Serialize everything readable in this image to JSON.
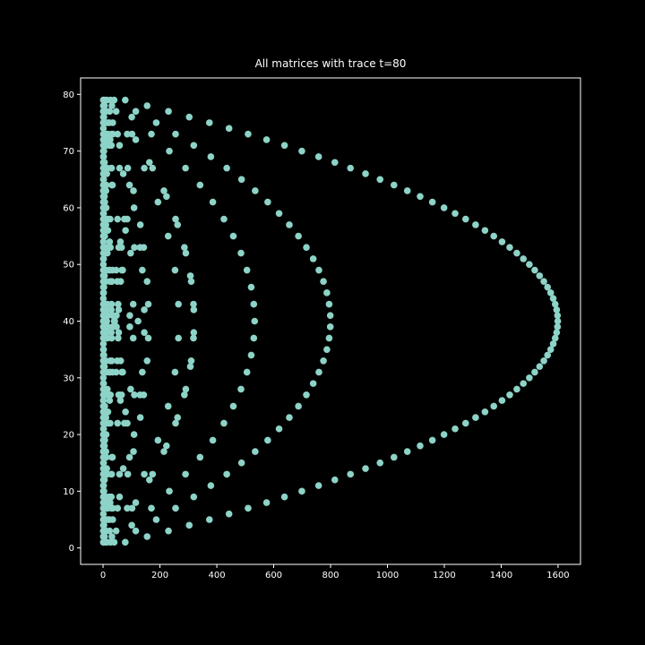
{
  "chart_data": {
    "type": "scatter",
    "title": "All matrices with trace t=80",
    "color": "#8dd3c7",
    "xlim": [
      -78.9,
      1678.9
    ],
    "ylim": [
      -2.9,
      82.9
    ],
    "xticks": [
      0,
      200,
      400,
      600,
      800,
      1000,
      1200,
      1400,
      1600
    ],
    "yticks": [
      0,
      10,
      20,
      30,
      40,
      50,
      60,
      70,
      80
    ],
    "x": [
      1,
      2,
      3,
      6,
      13,
      26,
      39,
      78,
      1,
      5,
      31,
      155,
      1,
      2,
      5,
      10,
      23,
      46,
      115,
      230,
      1,
      3,
      101,
      303,
      1,
      2,
      11,
      17,
      22,
      34,
      187,
      374,
      1,
      443,
      1,
      2,
      3,
      5,
      6,
      10,
      15,
      17,
      30,
      34,
      51,
      85,
      102,
      170,
      255,
      510,
      1,
      5,
      23,
      25,
      115,
      575,
      1,
      2,
      11,
      22,
      29,
      58,
      319,
      638,
      1,
      3,
      233,
      699,
      1,
      2,
      379,
      758,
      1,
      5,
      163,
      815,
      1,
      2,
      3,
      5,
      6,
      10,
      15,
      29,
      30,
      58,
      87,
      145,
      174,
      290,
      435,
      870,
      1,
      13,
      71,
      923,
      1,
      2,
      487,
      974,
      1,
      3,
      11,
      31,
      33,
      93,
      341,
      1023,
      1,
      2,
      5,
      10,
      107,
      214,
      535,
      1070,
      1,
      5,
      223,
      1115,
      1,
      2,
      3,
      6,
      193,
      386,
      579,
      1158,
      1,
      11,
      109,
      1199,
      1,
      2,
      619,
      1238,
      1,
      3,
      5,
      15,
      17,
      25,
      51,
      75,
      85,
      255,
      425,
      1275,
      1,
      2,
      5,
      10,
      131,
      262,
      655,
      1310,
      1,
      17,
      79,
      1343,
      1,
      2,
      3,
      6,
      229,
      458,
      687,
      1374,
      1,
      23,
      61,
      1403,
      1,
      2,
      5,
      10,
      11,
      13,
      22,
      26,
      55,
      65,
      110,
      130,
      143,
      286,
      715,
      1430,
      1,
      3,
      5,
      15,
      97,
      291,
      485,
      1455,
      1,
      2,
      739,
      1478,
      1,
      1499,
      1,
      2,
      3,
      6,
      11,
      22,
      23,
      33,
      46,
      66,
      69,
      138,
      253,
      506,
      759,
      1518,
      1,
      5,
      307,
      1535,
      1,
      2,
      5,
      10,
      25,
      31,
      50,
      62,
      155,
      310,
      775,
      1550,
      1,
      3,
      521,
      1563,
      1,
      2,
      787,
      1574,
      1,
      1583,
      1,
      2,
      3,
      5,
      6,
      10,
      15,
      30,
      53,
      106,
      159,
      265,
      318,
      530,
      795,
      1590,
      1,
      5,
      11,
      29,
      55,
      145,
      319,
      1595,
      1,
      2,
      17,
      34,
      47,
      94,
      799,
      1598,
      1,
      3,
      13,
      39,
      41,
      123,
      533,
      1599,
      1,
      2,
      17,
      34,
      47,
      94,
      799,
      1598,
      1,
      5,
      11,
      29,
      55,
      145,
      319,
      1595,
      1,
      2,
      3,
      5,
      6,
      10,
      15,
      30,
      53,
      106,
      159,
      265,
      318,
      530,
      795,
      1590,
      1,
      1583,
      1,
      2,
      787,
      1574,
      1,
      3,
      521,
      1563,
      1,
      2,
      5,
      10,
      25,
      31,
      50,
      62,
      155,
      310,
      775,
      1550,
      1,
      5,
      307,
      1535,
      1,
      2,
      3,
      6,
      11,
      22,
      23,
      33,
      46,
      66,
      69,
      138,
      253,
      506,
      759,
      1518,
      1,
      1499,
      1,
      2,
      739,
      1478,
      1,
      3,
      5,
      15,
      97,
      291,
      485,
      1455,
      1,
      2,
      5,
      10,
      11,
      13,
      22,
      26,
      55,
      65,
      110,
      130,
      143,
      286,
      715,
      1430,
      1,
      23,
      61,
      1403,
      1,
      2,
      3,
      6,
      229,
      458,
      687,
      1374,
      1,
      17,
      79,
      1343,
      1,
      2,
      5,
      10,
      131,
      262,
      655,
      1310,
      1,
      3,
      5,
      15,
      17,
      25,
      51,
      75,
      85,
      255,
      425,
      1275,
      1,
      2,
      619,
      1238,
      1,
      11,
      109,
      1199,
      1,
      2,
      3,
      6,
      193,
      386,
      579,
      1158,
      1,
      5,
      223,
      1115,
      1,
      2,
      5,
      10,
      107,
      214,
      535,
      1070,
      1,
      3,
      11,
      31,
      33,
      93,
      341,
      1023,
      1,
      2,
      487,
      974,
      1,
      13,
      71,
      923,
      1,
      2,
      3,
      5,
      6,
      10,
      15,
      29,
      30,
      58,
      87,
      145,
      174,
      290,
      435,
      870,
      1,
      5,
      163,
      815,
      1,
      2,
      379,
      758,
      1,
      3,
      233,
      699,
      1,
      2,
      11,
      22,
      29,
      58,
      319,
      638,
      1,
      5,
      23,
      25,
      115,
      575,
      1,
      2,
      3,
      5,
      6,
      10,
      15,
      17,
      30,
      34,
      51,
      85,
      102,
      170,
      255,
      510,
      1,
      443,
      1,
      2,
      11,
      17,
      22,
      34,
      187,
      374,
      1,
      3,
      101,
      303,
      1,
      2,
      5,
      10,
      23,
      46,
      115,
      230,
      1,
      5,
      31,
      155,
      1,
      2,
      3,
      6,
      13,
      26,
      39,
      78
    ],
    "y": [
      1,
      1,
      1,
      1,
      1,
      1,
      1,
      1,
      2,
      2,
      2,
      2,
      3,
      3,
      3,
      3,
      3,
      3,
      3,
      3,
      4,
      4,
      4,
      4,
      5,
      5,
      5,
      5,
      5,
      5,
      5,
      5,
      6,
      6,
      7,
      7,
      7,
      7,
      7,
      7,
      7,
      7,
      7,
      7,
      7,
      7,
      7,
      7,
      7,
      7,
      8,
      8,
      8,
      8,
      8,
      8,
      9,
      9,
      9,
      9,
      9,
      9,
      9,
      9,
      10,
      10,
      10,
      10,
      11,
      11,
      11,
      11,
      12,
      12,
      12,
      12,
      13,
      13,
      13,
      13,
      13,
      13,
      13,
      13,
      13,
      13,
      13,
      13,
      13,
      13,
      13,
      13,
      14,
      14,
      14,
      14,
      15,
      15,
      15,
      15,
      16,
      16,
      16,
      16,
      16,
      16,
      16,
      16,
      17,
      17,
      17,
      17,
      17,
      17,
      17,
      17,
      18,
      18,
      18,
      18,
      19,
      19,
      19,
      19,
      19,
      19,
      19,
      19,
      20,
      20,
      20,
      20,
      21,
      21,
      21,
      21,
      22,
      22,
      22,
      22,
      22,
      22,
      22,
      22,
      22,
      22,
      22,
      22,
      23,
      23,
      23,
      23,
      23,
      23,
      23,
      23,
      24,
      24,
      24,
      24,
      25,
      25,
      25,
      25,
      25,
      25,
      25,
      25,
      26,
      26,
      26,
      26,
      27,
      27,
      27,
      27,
      27,
      27,
      27,
      27,
      27,
      27,
      27,
      27,
      27,
      27,
      27,
      27,
      28,
      28,
      28,
      28,
      28,
      28,
      28,
      28,
      29,
      29,
      29,
      29,
      30,
      30,
      31,
      31,
      31,
      31,
      31,
      31,
      31,
      31,
      31,
      31,
      31,
      31,
      31,
      31,
      31,
      31,
      32,
      32,
      32,
      32,
      33,
      33,
      33,
      33,
      33,
      33,
      33,
      33,
      33,
      33,
      33,
      33,
      34,
      34,
      34,
      34,
      35,
      35,
      35,
      35,
      36,
      36,
      37,
      37,
      37,
      37,
      37,
      37,
      37,
      37,
      37,
      37,
      37,
      37,
      37,
      37,
      37,
      37,
      38,
      38,
      38,
      38,
      38,
      38,
      38,
      38,
      39,
      39,
      39,
      39,
      39,
      39,
      39,
      39,
      40,
      40,
      40,
      40,
      40,
      40,
      40,
      40,
      41,
      41,
      41,
      41,
      41,
      41,
      41,
      41,
      42,
      42,
      42,
      42,
      42,
      42,
      42,
      42,
      43,
      43,
      43,
      43,
      43,
      43,
      43,
      43,
      43,
      43,
      43,
      43,
      43,
      43,
      43,
      43,
      44,
      44,
      45,
      45,
      45,
      45,
      46,
      46,
      46,
      46,
      47,
      47,
      47,
      47,
      47,
      47,
      47,
      47,
      47,
      47,
      47,
      47,
      48,
      48,
      48,
      48,
      49,
      49,
      49,
      49,
      49,
      49,
      49,
      49,
      49,
      49,
      49,
      49,
      49,
      49,
      49,
      49,
      50,
      50,
      51,
      51,
      51,
      51,
      52,
      52,
      52,
      52,
      52,
      52,
      52,
      52,
      53,
      53,
      53,
      53,
      53,
      53,
      53,
      53,
      53,
      53,
      53,
      53,
      53,
      53,
      53,
      53,
      54,
      54,
      54,
      54,
      55,
      55,
      55,
      55,
      55,
      55,
      55,
      55,
      56,
      56,
      56,
      56,
      57,
      57,
      57,
      57,
      57,
      57,
      57,
      57,
      58,
      58,
      58,
      58,
      58,
      58,
      58,
      58,
      58,
      58,
      58,
      58,
      59,
      59,
      59,
      59,
      60,
      60,
      60,
      60,
      61,
      61,
      61,
      61,
      61,
      61,
      61,
      61,
      62,
      62,
      62,
      62,
      63,
      63,
      63,
      63,
      63,
      63,
      63,
      63,
      64,
      64,
      64,
      64,
      64,
      64,
      64,
      64,
      65,
      65,
      65,
      65,
      66,
      66,
      66,
      66,
      67,
      67,
      67,
      67,
      67,
      67,
      67,
      67,
      67,
      67,
      67,
      67,
      67,
      67,
      67,
      67,
      68,
      68,
      68,
      68,
      69,
      69,
      69,
      69,
      70,
      70,
      70,
      70,
      71,
      71,
      71,
      71,
      71,
      71,
      71,
      71,
      72,
      72,
      72,
      72,
      72,
      72,
      73,
      73,
      73,
      73,
      73,
      73,
      73,
      73,
      73,
      73,
      73,
      73,
      73,
      73,
      73,
      73,
      74,
      74,
      75,
      75,
      75,
      75,
      75,
      75,
      75,
      75,
      76,
      76,
      76,
      76,
      77,
      77,
      77,
      77,
      77,
      77,
      77,
      77,
      78,
      78,
      78,
      78,
      79,
      79,
      79,
      79,
      79,
      79,
      79,
      79
    ]
  }
}
